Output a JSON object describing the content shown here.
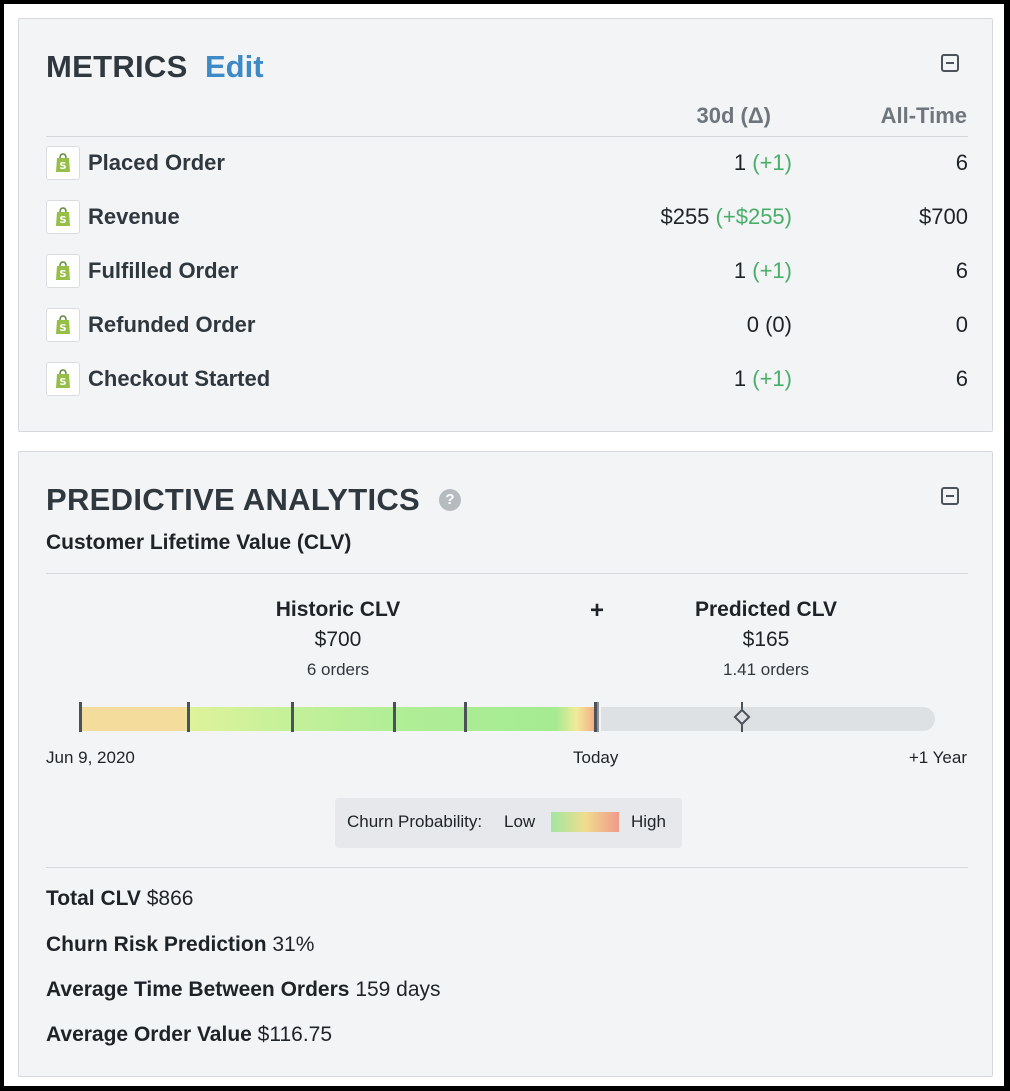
{
  "metrics": {
    "title": "METRICS",
    "edit_label": "Edit",
    "col_30d": "30d (Δ)",
    "col_all": "All-Time",
    "rows": [
      {
        "icon": "shopify-icon",
        "name": "Placed Order",
        "value_30d": "1",
        "delta": "(+1)",
        "all_time": "6"
      },
      {
        "icon": "shopify-icon",
        "name": "Revenue",
        "value_30d": "$255",
        "delta": "(+$255)",
        "all_time": "$700"
      },
      {
        "icon": "shopify-icon",
        "name": "Fulfilled Order",
        "value_30d": "1",
        "delta": "(+1)",
        "all_time": "6"
      },
      {
        "icon": "shopify-icon",
        "name": "Refunded Order",
        "value_30d": "0",
        "delta": "(0)",
        "all_time": "0"
      },
      {
        "icon": "shopify-icon",
        "name": "Checkout Started",
        "value_30d": "1",
        "delta": "(+1)",
        "all_time": "6"
      }
    ]
  },
  "predictive": {
    "title": "PREDICTIVE ANALYTICS",
    "help_icon": "question-circle-icon",
    "subtitle": "Customer Lifetime Value (CLV)",
    "historic": {
      "label": "Historic CLV",
      "amount": "$700",
      "orders": "6 orders"
    },
    "plus": "+",
    "predicted": {
      "label": "Predicted CLV",
      "amount": "$165",
      "orders": "1.41 orders"
    },
    "axis": {
      "start": "Jun 9, 2020",
      "today": "Today",
      "end": "+1 Year"
    },
    "legend": {
      "label": "Churn Probability:",
      "low": "Low",
      "high": "High"
    },
    "stats": [
      {
        "label": "Total CLV",
        "value": "$866"
      },
      {
        "label": "Churn Risk Prediction",
        "value": "31%"
      },
      {
        "label": "Average Time Between Orders",
        "value": "159 days"
      },
      {
        "label": "Average Order Value",
        "value": "$116.75"
      }
    ]
  },
  "colors": {
    "accent": "#3d8ac7",
    "positive_delta": "#4aae6a",
    "card_bg": "#f3f4f6"
  }
}
